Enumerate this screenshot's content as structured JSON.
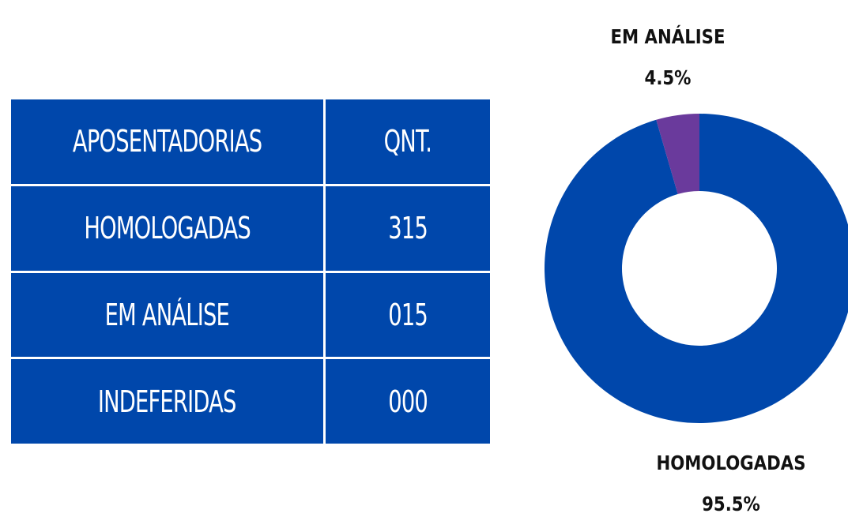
{
  "table": {
    "header": [
      "APOSENTADORIAS",
      "QNT."
    ],
    "rows": [
      [
        "HOMOLOGADAS",
        "315"
      ],
      [
        "EM ANÁLISE",
        "015"
      ],
      [
        "INDEFERIDAS",
        "000"
      ]
    ]
  },
  "chart_data": {
    "type": "pie",
    "categories": [
      "HOMOLOGADAS",
      "EM ANÁLISE"
    ],
    "values": [
      95.5,
      4.5
    ],
    "value_labels": [
      "95.5%",
      "4.5%"
    ],
    "colors": [
      "#0047ab",
      "#6a3a9c"
    ]
  }
}
